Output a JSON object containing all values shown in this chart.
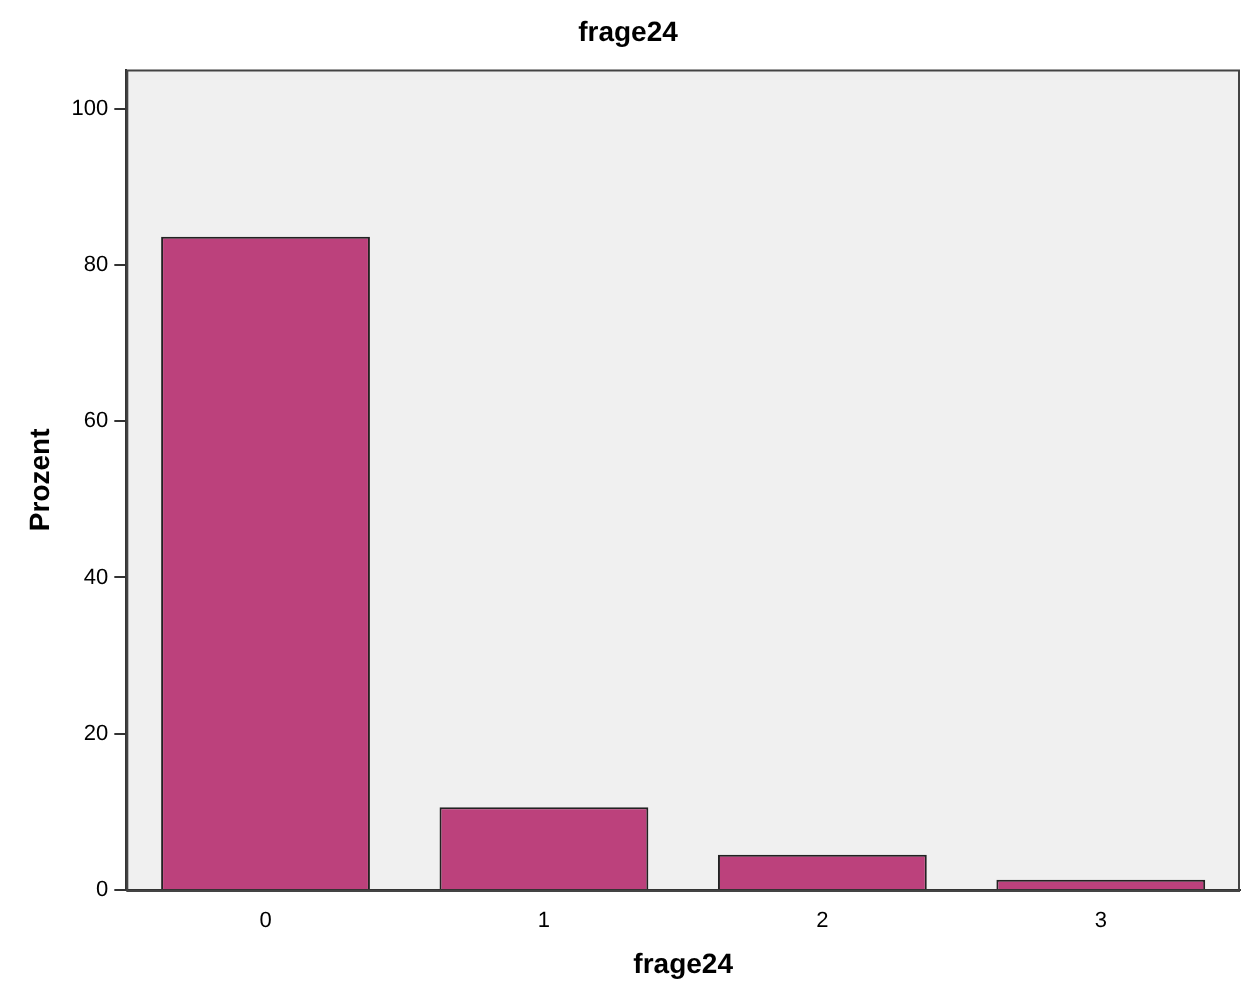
{
  "chart_data": {
    "type": "bar",
    "title": "frage24",
    "xlabel": "frage24",
    "ylabel": "Prozent",
    "categories": [
      "0",
      "1",
      "2",
      "3"
    ],
    "values": [
      83.6,
      10.6,
      4.5,
      1.3
    ],
    "color": "#bc417c",
    "ylim": [
      0,
      105
    ],
    "yticks": [
      0,
      20,
      40,
      60,
      80,
      100
    ],
    "grid": false,
    "legend": false
  }
}
